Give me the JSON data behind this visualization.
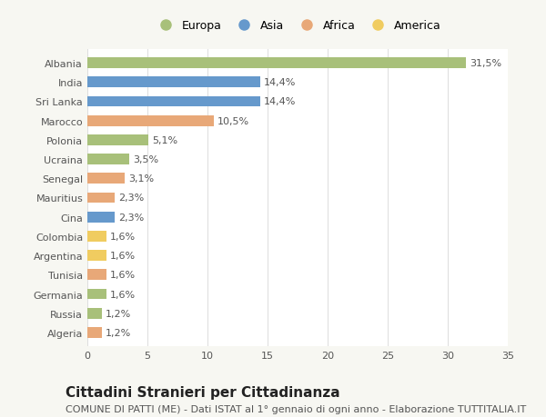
{
  "countries": [
    "Albania",
    "India",
    "Sri Lanka",
    "Marocco",
    "Polonia",
    "Ucraina",
    "Senegal",
    "Mauritius",
    "Cina",
    "Colombia",
    "Argentina",
    "Tunisia",
    "Germania",
    "Russia",
    "Algeria"
  ],
  "values": [
    31.5,
    14.4,
    14.4,
    10.5,
    5.1,
    3.5,
    3.1,
    2.3,
    2.3,
    1.6,
    1.6,
    1.6,
    1.6,
    1.2,
    1.2
  ],
  "labels": [
    "31,5%",
    "14,4%",
    "14,4%",
    "10,5%",
    "5,1%",
    "3,5%",
    "3,1%",
    "2,3%",
    "2,3%",
    "1,6%",
    "1,6%",
    "1,6%",
    "1,6%",
    "1,2%",
    "1,2%"
  ],
  "continents": [
    "Europa",
    "Asia",
    "Asia",
    "Africa",
    "Europa",
    "Europa",
    "Africa",
    "Africa",
    "Asia",
    "America",
    "America",
    "Africa",
    "Europa",
    "Europa",
    "Africa"
  ],
  "continent_colors": {
    "Europa": "#a8c07a",
    "Asia": "#6699cc",
    "Africa": "#e8a878",
    "America": "#f0cc60"
  },
  "legend_order": [
    "Europa",
    "Asia",
    "Africa",
    "America"
  ],
  "bg_color": "#f7f7f2",
  "plot_bg_color": "#ffffff",
  "xlim": [
    0,
    35
  ],
  "xticks": [
    0,
    5,
    10,
    15,
    20,
    25,
    30,
    35
  ],
  "title": "Cittadini Stranieri per Cittadinanza",
  "subtitle": "COMUNE DI PATTI (ME) - Dati ISTAT al 1° gennaio di ogni anno - Elaborazione TUTTITALIA.IT",
  "title_fontsize": 11,
  "subtitle_fontsize": 8,
  "label_fontsize": 8,
  "tick_fontsize": 8,
  "bar_height": 0.55
}
